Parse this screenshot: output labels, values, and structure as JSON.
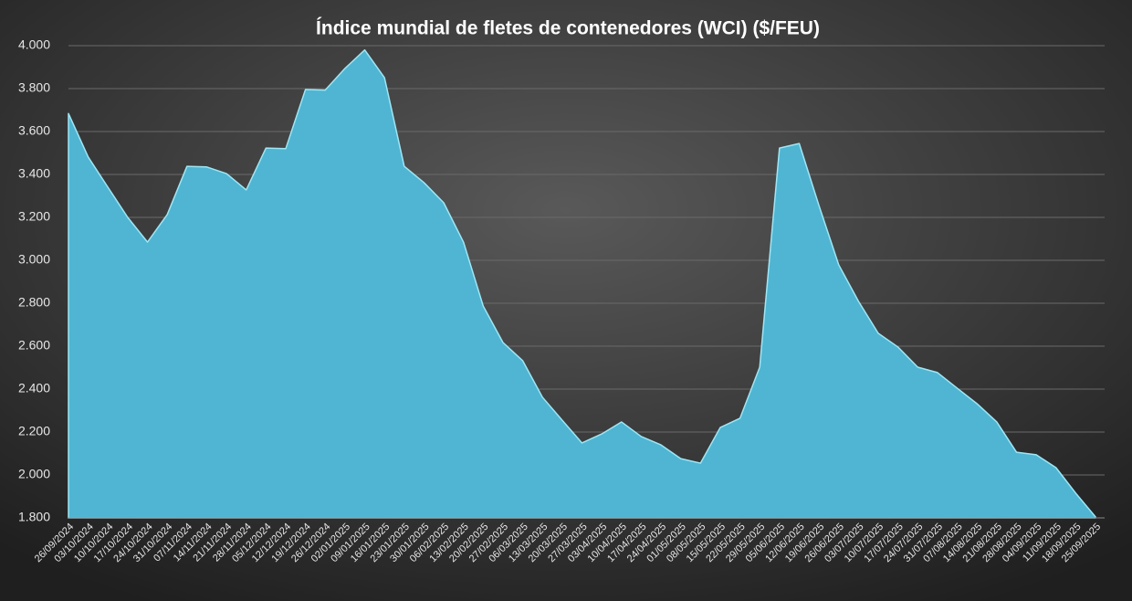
{
  "chart_data": {
    "type": "area",
    "title": "Índice mundial de fletes de contenedores (WCI) ($/FEU)",
    "categories": [
      "26/09/2024",
      "03/10/2024",
      "10/10/2024",
      "17/10/2024",
      "24/10/2024",
      "31/10/2024",
      "07/11/2024",
      "14/11/2024",
      "21/11/2024",
      "28/11/2024",
      "05/12/2024",
      "12/12/2024",
      "19/12/2024",
      "26/12/2024",
      "02/01/2025",
      "09/01/2025",
      "16/01/2025",
      "23/01/2025",
      "30/01/2025",
      "06/02/2025",
      "13/02/2025",
      "20/02/2025",
      "27/02/2025",
      "06/03/2025",
      "13/03/2025",
      "20/03/2025",
      "27/03/2025",
      "03/04/2025",
      "10/04/2025",
      "17/04/2025",
      "24/04/2025",
      "01/05/2025",
      "08/05/2025",
      "15/05/2025",
      "22/05/2025",
      "29/05/2025",
      "05/06/2025",
      "12/06/2025",
      "19/06/2025",
      "26/06/2025",
      "03/07/2025",
      "10/07/2025",
      "17/07/2025",
      "24/07/2025",
      "31/07/2025",
      "07/08/2025",
      "14/08/2025",
      "21/08/2025",
      "28/08/2025",
      "04/09/2025",
      "11/09/2025",
      "18/09/2025",
      "25/09/2025"
    ],
    "values": [
      3684,
      3481,
      3340,
      3200,
      3085,
      3213,
      3438,
      3435,
      3404,
      3328,
      3523,
      3520,
      3796,
      3793,
      3894,
      3980,
      3851,
      3438,
      3362,
      3268,
      3085,
      2787,
      2617,
      2532,
      2362,
      2255,
      2149,
      2191,
      2247,
      2179,
      2140,
      2076,
      2055,
      2221,
      2264,
      2502,
      3523,
      3544,
      3255,
      2979,
      2809,
      2660,
      2596,
      2502,
      2477,
      2404,
      2332,
      2247,
      2106,
      2094,
      2034,
      1915,
      1805
    ],
    "color": "#4fb5d2",
    "ylim": [
      1800,
      4000
    ],
    "yticks": [
      {
        "value": 1800,
        "label": "1.800"
      },
      {
        "value": 2000,
        "label": "2.000"
      },
      {
        "value": 2200,
        "label": "2.200"
      },
      {
        "value": 2400,
        "label": "2.400"
      },
      {
        "value": 2600,
        "label": "2.600"
      },
      {
        "value": 2800,
        "label": "2.800"
      },
      {
        "value": 3000,
        "label": "3.000"
      },
      {
        "value": 3200,
        "label": "3.200"
      },
      {
        "value": 3400,
        "label": "3.400"
      },
      {
        "value": 3600,
        "label": "3.600"
      },
      {
        "value": 3800,
        "label": "3.800"
      },
      {
        "value": 4000,
        "label": "4.000"
      }
    ],
    "grid": true
  }
}
